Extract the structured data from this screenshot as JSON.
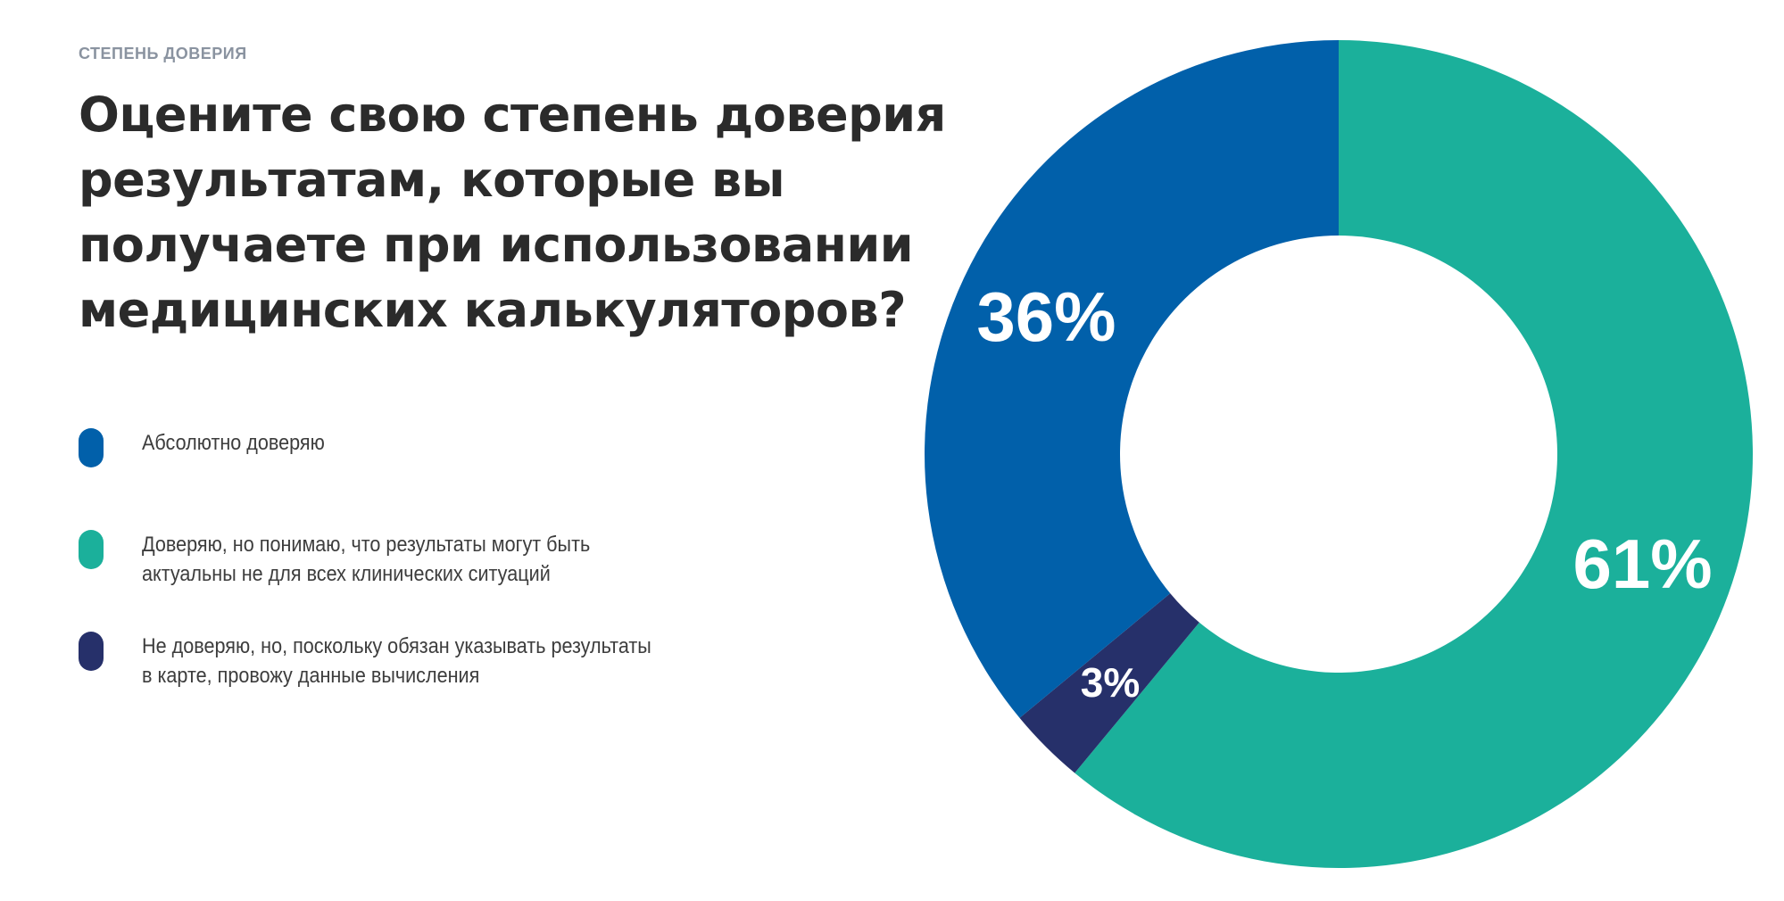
{
  "header": {
    "eyebrow": "СТЕПЕНЬ ДОВЕРИЯ",
    "title": "Оцените свою степень доверия результатам, которые вы получаете при использовании медицинских калькуляторов?"
  },
  "colors": {
    "absolute_trust": "#0160aa",
    "trust_with_limits": "#1bb09b",
    "no_trust": "#26306a",
    "label_text": "#ffffff"
  },
  "chart_data": {
    "type": "pie",
    "donut": true,
    "title": "Оцените свою степень доверия результатам, которые вы получаете при использовании медицинских калькуляторов?",
    "legend_position": "left",
    "slices": [
      {
        "label": "Доверяю, но понимаю, что результаты могут быть актуальны не для всех клинических ситуаций",
        "value": 61,
        "display": "61%",
        "color": "#1bb09b"
      },
      {
        "label": "Не доверяю, но, поскольку обязан указывать результаты в карте, провожу данные вычисления",
        "value": 3,
        "display": "3%",
        "color": "#26306a"
      },
      {
        "label": "Абсолютно доверяю",
        "value": 36,
        "display": "36%",
        "color": "#0160aa"
      }
    ],
    "legend": [
      {
        "label": "Абсолютно доверяю",
        "color": "#0160aa"
      },
      {
        "label": "Доверяю, но понимаю, что результаты могут быть\nактуальны не для всех клинических ситуаций",
        "color": "#1bb09b"
      },
      {
        "label": "Не доверяю, но, поскольку обязан указывать результаты\nв карте, провожу данные вычисления",
        "color": "#26306a"
      }
    ]
  }
}
